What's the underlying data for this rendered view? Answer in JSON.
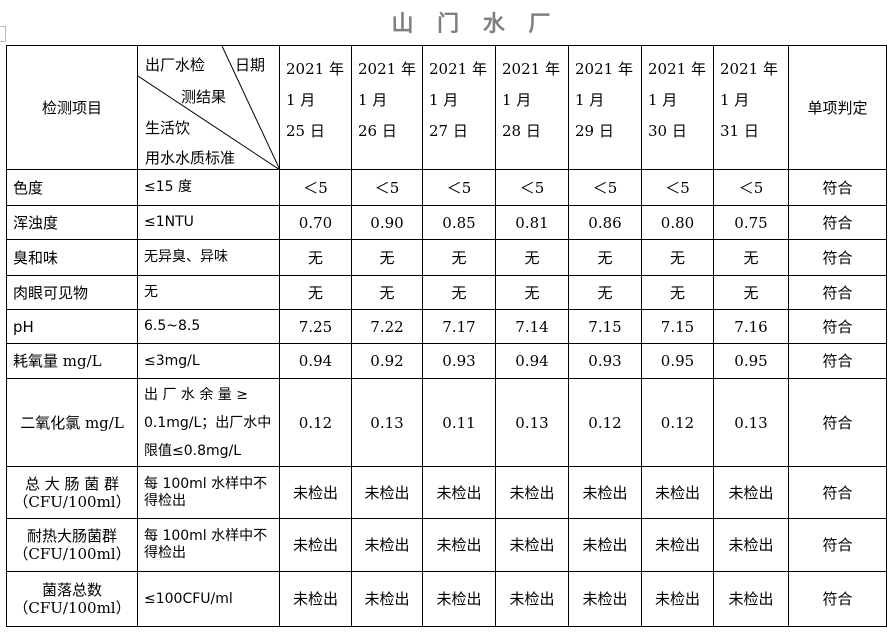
{
  "title": "山 门 水 厂",
  "header": {
    "item": "检测项目",
    "diag_top1": "出厂水检",
    "diag_top2": "日期",
    "diag_mid": "测结果",
    "diag_bot1": "生活饮",
    "diag_bot2": "用水水质标准",
    "verdict": "单项判定",
    "dates": [
      [
        "2021 年",
        "1 月",
        "25 日"
      ],
      [
        "2021 年",
        "1 月",
        "26 日"
      ],
      [
        "2021 年",
        "1 月",
        "27 日"
      ],
      [
        "2021 年",
        "1 月",
        "28 日"
      ],
      [
        "2021 年",
        "1 月",
        "29 日"
      ],
      [
        "2021 年",
        "1 月",
        "30 日"
      ],
      [
        "2021 年",
        "1 月",
        "31 日"
      ]
    ]
  },
  "rows": [
    {
      "item": "色度",
      "std": "≤15 度",
      "values": [
        "＜5",
        "＜5",
        "＜5",
        "＜5",
        "＜5",
        "＜5",
        "＜5"
      ],
      "verdict": "符合"
    },
    {
      "item": "浑浊度",
      "std": "≤1NTU",
      "values": [
        "0.70",
        "0.90",
        "0.85",
        "0.81",
        "0.86",
        "0.80",
        "0.75"
      ],
      "verdict": "符合"
    },
    {
      "item": "臭和味",
      "std": "无异臭、异味",
      "values": [
        "无",
        "无",
        "无",
        "无",
        "无",
        "无",
        "无"
      ],
      "verdict": "符合"
    },
    {
      "item": "肉眼可见物",
      "std": "无",
      "values": [
        "无",
        "无",
        "无",
        "无",
        "无",
        "无",
        "无"
      ],
      "verdict": "符合"
    },
    {
      "item": "pH",
      "std": "6.5~8.5",
      "values": [
        "7.25",
        "7.22",
        "7.17",
        "7.14",
        "7.15",
        "7.15",
        "7.16"
      ],
      "verdict": "符合"
    },
    {
      "item": "耗氧量 mg/L",
      "std": "≤3mg/L",
      "values": [
        "0.94",
        "0.92",
        "0.93",
        "0.94",
        "0.93",
        "0.95",
        "0.95"
      ],
      "verdict": "符合"
    },
    {
      "item": "二氧化氯 mg/L",
      "std": "出 厂 水 余 量 ≥ 0.1mg/L；出厂水中限值≤0.8mg/L",
      "values": [
        "0.12",
        "0.13",
        "0.11",
        "0.13",
        "0.12",
        "0.12",
        "0.13"
      ],
      "verdict": "符合"
    },
    {
      "item": "总 大 肠 菌 群（CFU/100ml）",
      "std": "每 100ml 水样中不得检出",
      "values": [
        "未检出",
        "未检出",
        "未检出",
        "未检出",
        "未检出",
        "未检出",
        "未检出"
      ],
      "verdict": "符合"
    },
    {
      "item": "耐热大肠菌群（CFU/100ml）",
      "std": "每 100ml 水样中不得检出",
      "values": [
        "未检出",
        "未检出",
        "未检出",
        "未检出",
        "未检出",
        "未检出",
        "未检出"
      ],
      "verdict": "符合"
    },
    {
      "item": "菌落总数（CFU/100ml）",
      "std": "≤100CFU/ml",
      "values": [
        "未检出",
        "未检出",
        "未检出",
        "未检出",
        "未检出",
        "未检出",
        "未检出"
      ],
      "verdict": "符合"
    }
  ]
}
